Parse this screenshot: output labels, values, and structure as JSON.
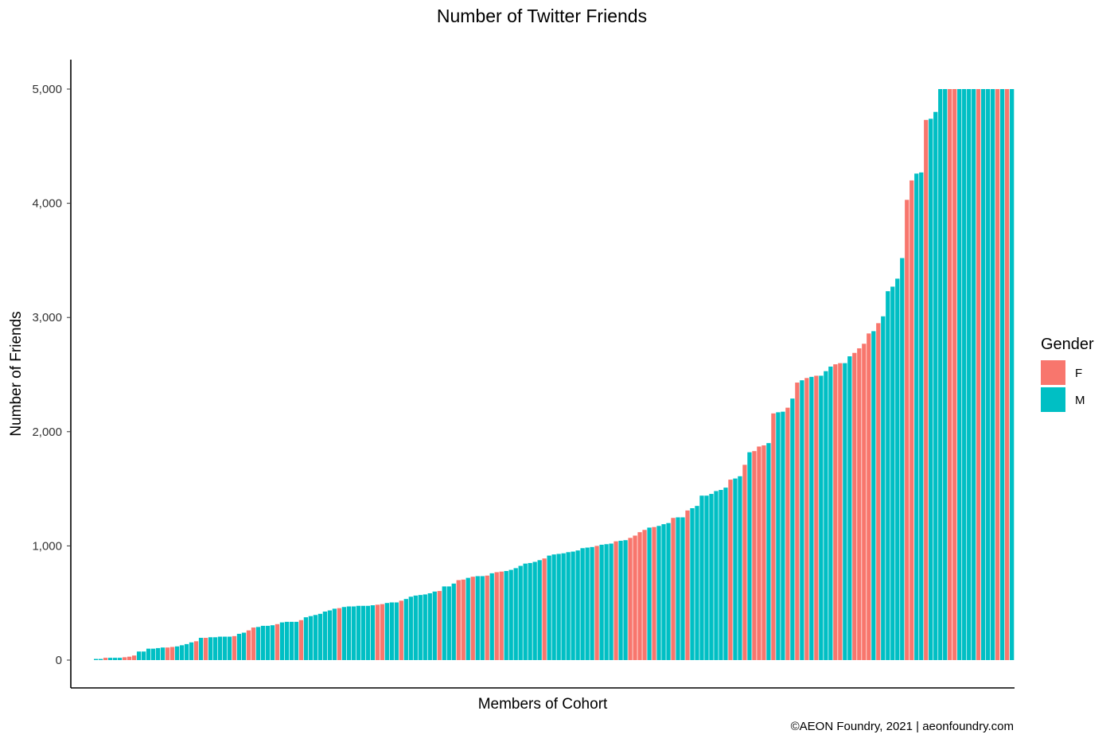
{
  "chart_data": {
    "type": "bar",
    "title": "Number of Twitter Friends",
    "xlabel": "Members of Cohort",
    "ylabel": "Number of Friends",
    "ylim": [
      0,
      5250
    ],
    "yticks": [
      0,
      1000,
      2000,
      3000,
      4000,
      5000
    ],
    "ytick_labels": [
      "0",
      "1,000",
      "2,000",
      "3,000",
      "4,000",
      "5,000"
    ],
    "grid": false,
    "legend": {
      "title": "Gender",
      "position": "right",
      "entries": [
        {
          "key": "F",
          "label": "F",
          "color": "#F8766D"
        },
        {
          "key": "M",
          "label": "M",
          "color": "#00BFC4"
        }
      ]
    },
    "caption": "©AEON Foundry, 2021 | aeonfoundry.com",
    "bars": [
      {
        "value": 10,
        "group": "M"
      },
      {
        "value": 10,
        "group": "M"
      },
      {
        "value": 20,
        "group": "F"
      },
      {
        "value": 20,
        "group": "M"
      },
      {
        "value": 20,
        "group": "M"
      },
      {
        "value": 20,
        "group": "M"
      },
      {
        "value": 25,
        "group": "F"
      },
      {
        "value": 30,
        "group": "F"
      },
      {
        "value": 40,
        "group": "F"
      },
      {
        "value": 75,
        "group": "M"
      },
      {
        "value": 75,
        "group": "M"
      },
      {
        "value": 100,
        "group": "M"
      },
      {
        "value": 100,
        "group": "M"
      },
      {
        "value": 105,
        "group": "M"
      },
      {
        "value": 110,
        "group": "M"
      },
      {
        "value": 110,
        "group": "F"
      },
      {
        "value": 115,
        "group": "F"
      },
      {
        "value": 120,
        "group": "M"
      },
      {
        "value": 130,
        "group": "M"
      },
      {
        "value": 140,
        "group": "M"
      },
      {
        "value": 155,
        "group": "M"
      },
      {
        "value": 165,
        "group": "F"
      },
      {
        "value": 195,
        "group": "M"
      },
      {
        "value": 195,
        "group": "F"
      },
      {
        "value": 200,
        "group": "M"
      },
      {
        "value": 200,
        "group": "M"
      },
      {
        "value": 205,
        "group": "M"
      },
      {
        "value": 205,
        "group": "M"
      },
      {
        "value": 205,
        "group": "M"
      },
      {
        "value": 210,
        "group": "F"
      },
      {
        "value": 230,
        "group": "M"
      },
      {
        "value": 240,
        "group": "M"
      },
      {
        "value": 260,
        "group": "F"
      },
      {
        "value": 285,
        "group": "F"
      },
      {
        "value": 290,
        "group": "M"
      },
      {
        "value": 300,
        "group": "M"
      },
      {
        "value": 300,
        "group": "M"
      },
      {
        "value": 305,
        "group": "M"
      },
      {
        "value": 315,
        "group": "F"
      },
      {
        "value": 330,
        "group": "M"
      },
      {
        "value": 335,
        "group": "M"
      },
      {
        "value": 335,
        "group": "M"
      },
      {
        "value": 335,
        "group": "M"
      },
      {
        "value": 350,
        "group": "F"
      },
      {
        "value": 375,
        "group": "M"
      },
      {
        "value": 385,
        "group": "M"
      },
      {
        "value": 395,
        "group": "M"
      },
      {
        "value": 405,
        "group": "M"
      },
      {
        "value": 425,
        "group": "M"
      },
      {
        "value": 435,
        "group": "M"
      },
      {
        "value": 450,
        "group": "M"
      },
      {
        "value": 455,
        "group": "F"
      },
      {
        "value": 465,
        "group": "M"
      },
      {
        "value": 470,
        "group": "M"
      },
      {
        "value": 470,
        "group": "M"
      },
      {
        "value": 475,
        "group": "M"
      },
      {
        "value": 475,
        "group": "M"
      },
      {
        "value": 475,
        "group": "M"
      },
      {
        "value": 480,
        "group": "M"
      },
      {
        "value": 485,
        "group": "F"
      },
      {
        "value": 490,
        "group": "F"
      },
      {
        "value": 500,
        "group": "M"
      },
      {
        "value": 505,
        "group": "M"
      },
      {
        "value": 505,
        "group": "M"
      },
      {
        "value": 520,
        "group": "F"
      },
      {
        "value": 535,
        "group": "M"
      },
      {
        "value": 555,
        "group": "M"
      },
      {
        "value": 565,
        "group": "M"
      },
      {
        "value": 570,
        "group": "M"
      },
      {
        "value": 575,
        "group": "M"
      },
      {
        "value": 585,
        "group": "M"
      },
      {
        "value": 600,
        "group": "M"
      },
      {
        "value": 605,
        "group": "F"
      },
      {
        "value": 645,
        "group": "M"
      },
      {
        "value": 645,
        "group": "M"
      },
      {
        "value": 670,
        "group": "M"
      },
      {
        "value": 700,
        "group": "F"
      },
      {
        "value": 705,
        "group": "F"
      },
      {
        "value": 720,
        "group": "M"
      },
      {
        "value": 730,
        "group": "F"
      },
      {
        "value": 735,
        "group": "M"
      },
      {
        "value": 735,
        "group": "M"
      },
      {
        "value": 740,
        "group": "F"
      },
      {
        "value": 760,
        "group": "M"
      },
      {
        "value": 770,
        "group": "F"
      },
      {
        "value": 775,
        "group": "F"
      },
      {
        "value": 780,
        "group": "M"
      },
      {
        "value": 790,
        "group": "M"
      },
      {
        "value": 805,
        "group": "M"
      },
      {
        "value": 825,
        "group": "M"
      },
      {
        "value": 845,
        "group": "M"
      },
      {
        "value": 850,
        "group": "M"
      },
      {
        "value": 860,
        "group": "M"
      },
      {
        "value": 875,
        "group": "M"
      },
      {
        "value": 890,
        "group": "F"
      },
      {
        "value": 915,
        "group": "M"
      },
      {
        "value": 925,
        "group": "M"
      },
      {
        "value": 930,
        "group": "M"
      },
      {
        "value": 935,
        "group": "M"
      },
      {
        "value": 945,
        "group": "M"
      },
      {
        "value": 950,
        "group": "M"
      },
      {
        "value": 960,
        "group": "M"
      },
      {
        "value": 980,
        "group": "M"
      },
      {
        "value": 985,
        "group": "M"
      },
      {
        "value": 990,
        "group": "M"
      },
      {
        "value": 1000,
        "group": "F"
      },
      {
        "value": 1010,
        "group": "M"
      },
      {
        "value": 1015,
        "group": "M"
      },
      {
        "value": 1020,
        "group": "M"
      },
      {
        "value": 1040,
        "group": "F"
      },
      {
        "value": 1045,
        "group": "M"
      },
      {
        "value": 1050,
        "group": "M"
      },
      {
        "value": 1070,
        "group": "F"
      },
      {
        "value": 1090,
        "group": "F"
      },
      {
        "value": 1120,
        "group": "F"
      },
      {
        "value": 1140,
        "group": "F"
      },
      {
        "value": 1160,
        "group": "M"
      },
      {
        "value": 1165,
        "group": "F"
      },
      {
        "value": 1175,
        "group": "M"
      },
      {
        "value": 1190,
        "group": "M"
      },
      {
        "value": 1200,
        "group": "M"
      },
      {
        "value": 1245,
        "group": "F"
      },
      {
        "value": 1250,
        "group": "M"
      },
      {
        "value": 1250,
        "group": "M"
      },
      {
        "value": 1310,
        "group": "F"
      },
      {
        "value": 1330,
        "group": "M"
      },
      {
        "value": 1350,
        "group": "M"
      },
      {
        "value": 1440,
        "group": "M"
      },
      {
        "value": 1440,
        "group": "M"
      },
      {
        "value": 1455,
        "group": "M"
      },
      {
        "value": 1480,
        "group": "M"
      },
      {
        "value": 1490,
        "group": "M"
      },
      {
        "value": 1510,
        "group": "M"
      },
      {
        "value": 1580,
        "group": "F"
      },
      {
        "value": 1590,
        "group": "M"
      },
      {
        "value": 1610,
        "group": "M"
      },
      {
        "value": 1710,
        "group": "F"
      },
      {
        "value": 1820,
        "group": "M"
      },
      {
        "value": 1830,
        "group": "F"
      },
      {
        "value": 1870,
        "group": "F"
      },
      {
        "value": 1880,
        "group": "F"
      },
      {
        "value": 1900,
        "group": "M"
      },
      {
        "value": 2160,
        "group": "F"
      },
      {
        "value": 2170,
        "group": "M"
      },
      {
        "value": 2175,
        "group": "M"
      },
      {
        "value": 2210,
        "group": "F"
      },
      {
        "value": 2290,
        "group": "M"
      },
      {
        "value": 2430,
        "group": "F"
      },
      {
        "value": 2450,
        "group": "M"
      },
      {
        "value": 2470,
        "group": "F"
      },
      {
        "value": 2480,
        "group": "M"
      },
      {
        "value": 2490,
        "group": "F"
      },
      {
        "value": 2490,
        "group": "M"
      },
      {
        "value": 2530,
        "group": "M"
      },
      {
        "value": 2570,
        "group": "M"
      },
      {
        "value": 2590,
        "group": "F"
      },
      {
        "value": 2600,
        "group": "F"
      },
      {
        "value": 2600,
        "group": "M"
      },
      {
        "value": 2660,
        "group": "M"
      },
      {
        "value": 2690,
        "group": "F"
      },
      {
        "value": 2730,
        "group": "F"
      },
      {
        "value": 2770,
        "group": "F"
      },
      {
        "value": 2860,
        "group": "F"
      },
      {
        "value": 2880,
        "group": "M"
      },
      {
        "value": 2950,
        "group": "F"
      },
      {
        "value": 3010,
        "group": "M"
      },
      {
        "value": 3230,
        "group": "M"
      },
      {
        "value": 3270,
        "group": "M"
      },
      {
        "value": 3340,
        "group": "M"
      },
      {
        "value": 3520,
        "group": "M"
      },
      {
        "value": 4030,
        "group": "F"
      },
      {
        "value": 4200,
        "group": "F"
      },
      {
        "value": 4260,
        "group": "M"
      },
      {
        "value": 4270,
        "group": "M"
      },
      {
        "value": 4730,
        "group": "F"
      },
      {
        "value": 4740,
        "group": "M"
      },
      {
        "value": 4800,
        "group": "M"
      },
      {
        "value": 5000,
        "group": "M"
      },
      {
        "value": 5000,
        "group": "M"
      },
      {
        "value": 5000,
        "group": "F"
      },
      {
        "value": 5000,
        "group": "F"
      },
      {
        "value": 5000,
        "group": "M"
      },
      {
        "value": 5000,
        "group": "M"
      },
      {
        "value": 5000,
        "group": "M"
      },
      {
        "value": 5000,
        "group": "M"
      },
      {
        "value": 5000,
        "group": "F"
      },
      {
        "value": 5000,
        "group": "M"
      },
      {
        "value": 5000,
        "group": "M"
      },
      {
        "value": 5000,
        "group": "M"
      },
      {
        "value": 5000,
        "group": "F"
      },
      {
        "value": 5000,
        "group": "M"
      },
      {
        "value": 5000,
        "group": "F"
      },
      {
        "value": 5000,
        "group": "M"
      }
    ]
  }
}
